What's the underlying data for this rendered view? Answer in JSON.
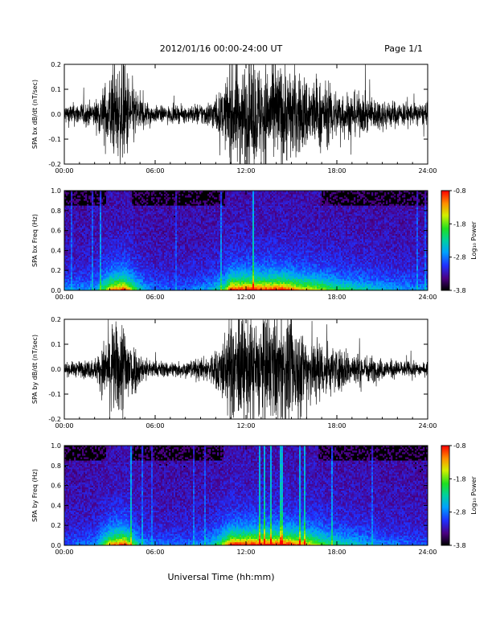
{
  "header": {
    "title": "2012/01/16  00:00-24:00 UT",
    "page": "Page 1/1"
  },
  "footer": {
    "xlabel": "Universal Time (hh:mm)"
  },
  "chart_data": [
    {
      "type": "line",
      "ylabel": "SPA bx dB/dt (nT/sec)",
      "xlabel": "",
      "x_ticks": [
        "00:00",
        "06:00",
        "12:00",
        "18:00",
        "24:00"
      ],
      "y_ticks": [
        "-0.2",
        "-0.1",
        "0.0",
        "0.1",
        "0.2"
      ],
      "xlim": [
        0,
        24
      ],
      "ylim": [
        -0.2,
        0.2
      ],
      "activity_profile_hours": [
        [
          0,
          0.45
        ],
        [
          2,
          0.5
        ],
        [
          3,
          0.9
        ],
        [
          4,
          1.0
        ],
        [
          5,
          0.6
        ],
        [
          6,
          0.4
        ],
        [
          8,
          0.4
        ],
        [
          9.5,
          0.5
        ],
        [
          10.5,
          0.7
        ],
        [
          11,
          1.0
        ],
        [
          14.5,
          1.0
        ],
        [
          15.5,
          0.9
        ],
        [
          17,
          0.8
        ],
        [
          18,
          0.7
        ],
        [
          20,
          0.6
        ],
        [
          22,
          0.5
        ],
        [
          24,
          0.45
        ]
      ],
      "series": [
        {
          "values_summary": "oscillating signal about 0.0, saturating ±0.2 near 04:00 and 11:00–15:30",
          "color": "#000000"
        }
      ]
    },
    {
      "type": "heatmap",
      "ylabel": "SPA bx Freq (Hz)",
      "xlabel": "",
      "x_ticks": [
        "00:00",
        "06:00",
        "12:00",
        "18:00",
        "24:00"
      ],
      "y_ticks": [
        "0.0",
        "0.2",
        "0.4",
        "0.6",
        "0.8",
        "1.0"
      ],
      "xlim": [
        0,
        24
      ],
      "ylim": [
        0,
        1.0
      ],
      "colorbar": {
        "label": "Log₁₀ Power",
        "ticks": [
          "-0.8",
          "-1.8",
          "-2.8",
          "-3.8"
        ],
        "range": [
          -3.8,
          -0.8
        ]
      }
    },
    {
      "type": "line",
      "ylabel": "SPA by dB/dt (nT/sec)",
      "xlabel": "",
      "x_ticks": [
        "00:00",
        "06:00",
        "12:00",
        "18:00",
        "24:00"
      ],
      "y_ticks": [
        "-0.2",
        "-0.1",
        "0.0",
        "0.1",
        "0.2"
      ],
      "xlim": [
        0,
        24
      ],
      "ylim": [
        -0.2,
        0.2
      ],
      "activity_profile_hours": [
        [
          0,
          0.35
        ],
        [
          2,
          0.45
        ],
        [
          3,
          0.9
        ],
        [
          4,
          1.0
        ],
        [
          5,
          0.55
        ],
        [
          6,
          0.4
        ],
        [
          8,
          0.4
        ],
        [
          9.5,
          0.5
        ],
        [
          10.5,
          0.8
        ],
        [
          11,
          1.0
        ],
        [
          15,
          1.0
        ],
        [
          16,
          0.9
        ],
        [
          17.5,
          0.7
        ],
        [
          19,
          0.6
        ],
        [
          21,
          0.45
        ],
        [
          24,
          0.35
        ]
      ],
      "series": [
        {
          "values_summary": "oscillating signal about 0.0, saturating ±0.2 near 04:00 and 10:30–15:30",
          "color": "#000000"
        }
      ]
    },
    {
      "type": "heatmap",
      "ylabel": "SPA by Freq (Hz)",
      "xlabel": "",
      "x_ticks": [
        "00:00",
        "06:00",
        "12:00",
        "18:00",
        "24:00"
      ],
      "y_ticks": [
        "0.0",
        "0.2",
        "0.4",
        "0.6",
        "0.8",
        "1.0"
      ],
      "xlim": [
        0,
        24
      ],
      "ylim": [
        0,
        1.0
      ],
      "colorbar": {
        "label": "Log₁₀ Power",
        "ticks": [
          "-0.8",
          "-1.8",
          "-2.8",
          "-3.8"
        ],
        "range": [
          -3.8,
          -0.8
        ]
      }
    }
  ]
}
